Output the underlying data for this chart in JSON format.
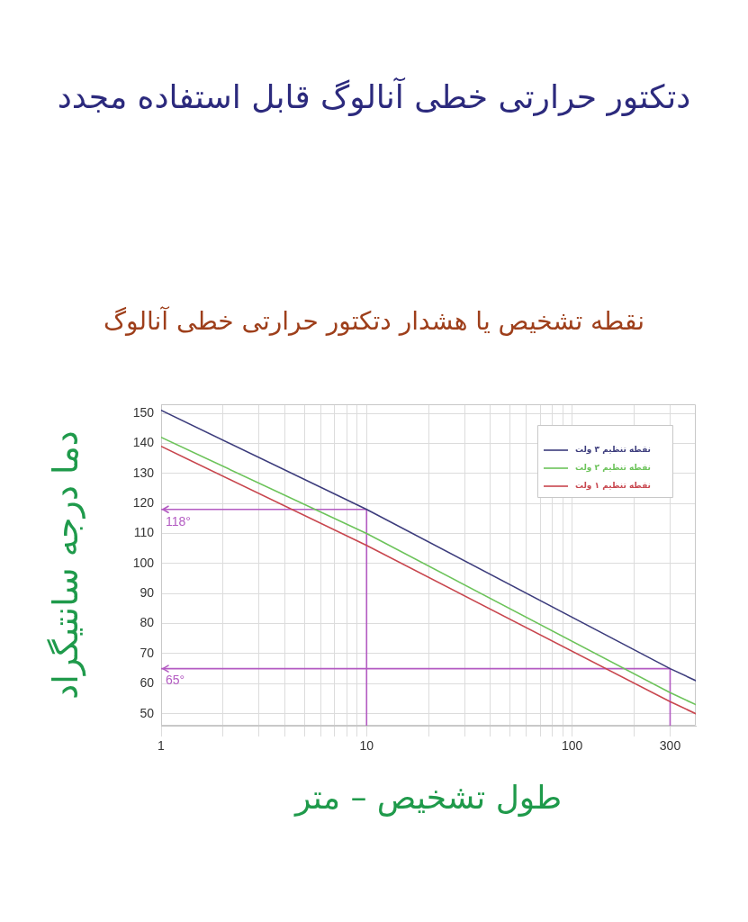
{
  "chart_data": {
    "type": "line",
    "title": "دتکتور حرارتی خطی آنالوگ قابل استفاده مجدد",
    "subtitle": "نقطه تشخیص یا هشدار دتکتور حرارتی خطی آنالوگ",
    "xlabel": "طول تشخیص – متر",
    "ylabel": "دما درجه سانتیگراد",
    "x": [
      1,
      10,
      300,
      400
    ],
    "series": [
      {
        "name": "نقطه تنظیم ۳ ولت",
        "color": "#3c3c7c",
        "values": [
          151,
          118,
          65,
          61
        ]
      },
      {
        "name": "نقطه تنظیم ۲ ولت",
        "color": "#6cc35a",
        "values": [
          142,
          110,
          57,
          53
        ]
      },
      {
        "name": "نقطه تنظیم ۱ ولت",
        "color": "#c8464e",
        "values": [
          139,
          106,
          54,
          50
        ]
      },
      {
        "type": "line",
        "color": "#b35bc2",
        "x": [
          1,
          10,
          10
        ],
        "values": [
          118,
          118,
          46
        ]
      },
      {
        "type": "line",
        "color": "#b35bc2",
        "x": [
          1,
          300,
          300
        ],
        "values": [
          65,
          65,
          46
        ]
      }
    ],
    "xlim": [
      1,
      400
    ],
    "ylim": [
      46,
      153
    ],
    "xticks": [
      1,
      {
        "value": 2,
        "label": null
      },
      {
        "value": 3,
        "label": null
      },
      {
        "value": 4,
        "label": null
      },
      {
        "value": 5,
        "label": null
      },
      {
        "value": 6,
        "label": null
      },
      {
        "value": 7,
        "label": null
      },
      {
        "value": 8,
        "label": null
      },
      {
        "value": 9,
        "label": null
      },
      10,
      {
        "value": 20,
        "label": null
      },
      {
        "value": 30,
        "label": null
      },
      {
        "value": 40,
        "label": null
      },
      {
        "value": 50,
        "label": null
      },
      {
        "value": 60,
        "label": null
      },
      {
        "value": 70,
        "label": null
      },
      {
        "value": 80,
        "label": null
      },
      {
        "value": 90,
        "label": null
      },
      100,
      {
        "value": 200,
        "label": null
      },
      300
    ],
    "yticks": [
      50,
      60,
      70,
      80,
      90,
      100,
      110,
      120,
      130,
      140,
      150
    ],
    "log": "x",
    "grid": true,
    "legend": "top right",
    "marker": "none",
    "annotations": [
      {
        "text": "118°",
        "x": 1,
        "y": 118
      },
      {
        "text": "65°",
        "x": 1,
        "y": 65
      }
    ]
  }
}
